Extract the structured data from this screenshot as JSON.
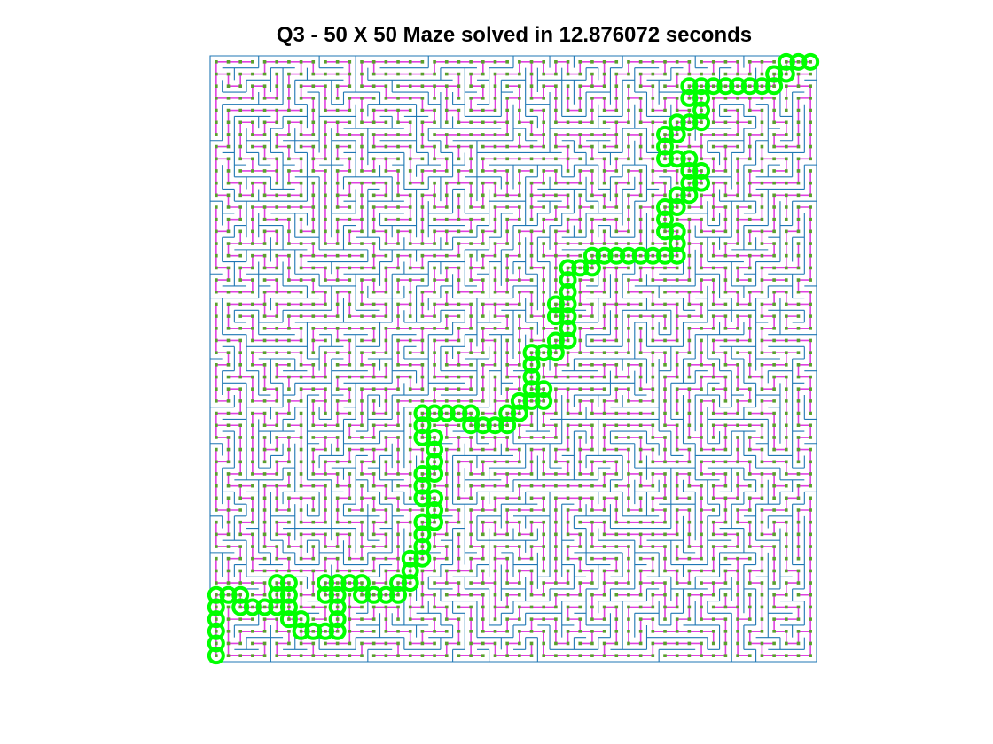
{
  "figure": {
    "title": "Q3 - 50 X 50 Maze solved in 12.876072 seconds"
  },
  "maze": {
    "rows": 50,
    "cols": 50,
    "wall_color": "#1f77b4",
    "node_color": "#5aa02c",
    "link_color": "#e040e0",
    "path_color": "#00ff00",
    "start": [
      0,
      0
    ],
    "goal": [
      49,
      49
    ],
    "solution_path_waypoints": [
      [
        0,
        0
      ],
      [
        0,
        1
      ],
      [
        0,
        2
      ],
      [
        0,
        3
      ],
      [
        0,
        4
      ],
      [
        0,
        5
      ],
      [
        1,
        5
      ],
      [
        2,
        5
      ],
      [
        2,
        4
      ],
      [
        3,
        4
      ],
      [
        4,
        4
      ],
      [
        5,
        4
      ],
      [
        5,
        5
      ],
      [
        5,
        6
      ],
      [
        6,
        6
      ],
      [
        6,
        5
      ],
      [
        6,
        4
      ],
      [
        6,
        3
      ],
      [
        7,
        3
      ],
      [
        7,
        2
      ],
      [
        8,
        2
      ],
      [
        9,
        2
      ],
      [
        10,
        2
      ],
      [
        10,
        3
      ],
      [
        10,
        4
      ],
      [
        10,
        5
      ],
      [
        9,
        5
      ],
      [
        9,
        6
      ],
      [
        10,
        6
      ],
      [
        11,
        6
      ],
      [
        12,
        6
      ],
      [
        12,
        5
      ],
      [
        13,
        5
      ],
      [
        14,
        5
      ],
      [
        15,
        5
      ],
      [
        15,
        6
      ],
      [
        16,
        6
      ],
      [
        16,
        7
      ],
      [
        16,
        8
      ],
      [
        17,
        8
      ],
      [
        17,
        9
      ],
      [
        17,
        10
      ],
      [
        17,
        11
      ],
      [
        18,
        11
      ],
      [
        18,
        12
      ],
      [
        18,
        13
      ],
      [
        17,
        13
      ],
      [
        17,
        14
      ],
      [
        17,
        15
      ],
      [
        18,
        15
      ],
      [
        18,
        16
      ],
      [
        18,
        17
      ],
      [
        18,
        18
      ],
      [
        17,
        18
      ],
      [
        17,
        19
      ],
      [
        17,
        20
      ],
      [
        18,
        20
      ],
      [
        19,
        20
      ],
      [
        20,
        20
      ],
      [
        21,
        20
      ],
      [
        21,
        19
      ],
      [
        22,
        19
      ],
      [
        23,
        19
      ],
      [
        24,
        19
      ],
      [
        24,
        20
      ],
      [
        25,
        20
      ],
      [
        25,
        21
      ],
      [
        26,
        21
      ],
      [
        27,
        21
      ],
      [
        27,
        22
      ],
      [
        26,
        22
      ],
      [
        26,
        23
      ],
      [
        26,
        24
      ],
      [
        26,
        25
      ],
      [
        27,
        25
      ],
      [
        28,
        25
      ],
      [
        28,
        26
      ],
      [
        29,
        26
      ],
      [
        29,
        27
      ],
      [
        29,
        28
      ],
      [
        28,
        28
      ],
      [
        28,
        29
      ],
      [
        29,
        29
      ],
      [
        29,
        30
      ],
      [
        29,
        31
      ],
      [
        29,
        32
      ],
      [
        30,
        32
      ],
      [
        31,
        32
      ],
      [
        31,
        33
      ],
      [
        32,
        33
      ],
      [
        33,
        33
      ],
      [
        34,
        33
      ],
      [
        35,
        33
      ],
      [
        36,
        33
      ],
      [
        37,
        33
      ],
      [
        38,
        33
      ],
      [
        38,
        34
      ],
      [
        38,
        35
      ],
      [
        37,
        35
      ],
      [
        37,
        36
      ],
      [
        37,
        37
      ],
      [
        38,
        37
      ],
      [
        38,
        38
      ],
      [
        39,
        38
      ],
      [
        39,
        39
      ],
      [
        40,
        39
      ],
      [
        40,
        40
      ],
      [
        39,
        40
      ],
      [
        39,
        41
      ],
      [
        38,
        41
      ],
      [
        37,
        41
      ],
      [
        37,
        42
      ],
      [
        37,
        43
      ],
      [
        38,
        43
      ],
      [
        38,
        44
      ],
      [
        39,
        44
      ],
      [
        40,
        44
      ],
      [
        40,
        45
      ],
      [
        40,
        46
      ],
      [
        39,
        46
      ],
      [
        39,
        47
      ],
      [
        40,
        47
      ],
      [
        41,
        47
      ],
      [
        42,
        47
      ],
      [
        43,
        47
      ],
      [
        44,
        47
      ],
      [
        45,
        47
      ],
      [
        46,
        47
      ],
      [
        46,
        48
      ],
      [
        47,
        48
      ],
      [
        47,
        49
      ],
      [
        48,
        49
      ],
      [
        49,
        49
      ]
    ]
  }
}
